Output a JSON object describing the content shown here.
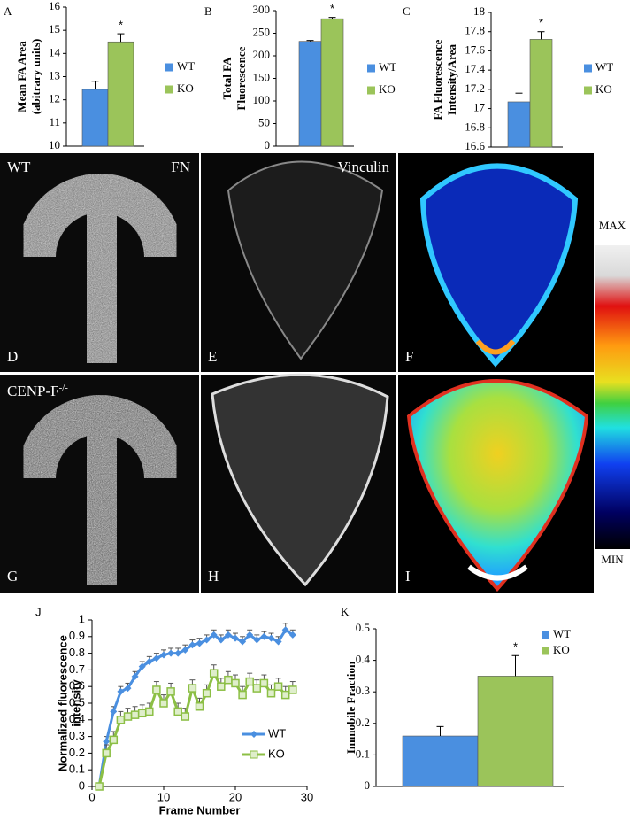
{
  "chart_data": [
    {
      "type": "bar",
      "panel": "A",
      "ylabel": [
        "Mean FA Area",
        "(abitrary units)"
      ],
      "ylim": [
        10,
        16
      ],
      "yticks": [
        10,
        11,
        12,
        13,
        14,
        15,
        16
      ],
      "series": [
        {
          "name": "WT",
          "color": "#4a8fe0",
          "values": [
            12.45
          ],
          "errors": [
            0.35
          ]
        },
        {
          "name": "KO",
          "color": "#9bc45a",
          "values": [
            14.5
          ],
          "errors": [
            0.35
          ]
        }
      ],
      "annotation": "*"
    },
    {
      "type": "bar",
      "panel": "B",
      "ylabel": [
        "Total FA",
        "Fluorescence"
      ],
      "ylim": [
        0,
        300
      ],
      "yticks": [
        0,
        50,
        100,
        150,
        200,
        250,
        300
      ],
      "series": [
        {
          "name": "WT",
          "color": "#4a8fe0",
          "values": [
            232
          ],
          "errors": [
            2
          ]
        },
        {
          "name": "KO",
          "color": "#9bc45a",
          "values": [
            282
          ],
          "errors": [
            3
          ]
        }
      ],
      "annotation": "*"
    },
    {
      "type": "bar",
      "panel": "C",
      "ylabel": [
        "FA Fluorescence",
        "Intensity/Area"
      ],
      "ylim": [
        16.6,
        18
      ],
      "yticks": [
        16.6,
        16.8,
        17,
        17.2,
        17.4,
        17.6,
        17.8,
        18
      ],
      "series": [
        {
          "name": "WT",
          "color": "#4a8fe0",
          "values": [
            17.07
          ],
          "errors": [
            0.09
          ]
        },
        {
          "name": "KO",
          "color": "#9bc45a",
          "values": [
            17.72
          ],
          "errors": [
            0.08
          ]
        }
      ],
      "annotation": "*"
    },
    {
      "type": "line",
      "panel": "J",
      "xlabel": "Frame Number",
      "ylabel": [
        "Normalized fluorescence",
        "intensity"
      ],
      "x": [
        1,
        2,
        3,
        4,
        5,
        6,
        7,
        8,
        9,
        10,
        11,
        12,
        13,
        14,
        15,
        16,
        17,
        18,
        19,
        20,
        21,
        22,
        23,
        24,
        25,
        26,
        27,
        28
      ],
      "xlim": [
        0,
        30
      ],
      "xticks": [
        0,
        10,
        20,
        30
      ],
      "ylim": [
        0,
        1
      ],
      "yticks": [
        0,
        0.1,
        0.2,
        0.3,
        0.4,
        0.5,
        0.6,
        0.7,
        0.8,
        0.9,
        1
      ],
      "series": [
        {
          "name": "WT",
          "color": "#4a8fe0",
          "values": [
            0,
            0.27,
            0.45,
            0.57,
            0.59,
            0.66,
            0.72,
            0.75,
            0.77,
            0.79,
            0.8,
            0.8,
            0.82,
            0.85,
            0.86,
            0.88,
            0.91,
            0.88,
            0.91,
            0.89,
            0.87,
            0.91,
            0.88,
            0.9,
            0.89,
            0.87,
            0.94,
            0.91
          ],
          "errors": [
            0.01,
            0.03,
            0.03,
            0.03,
            0.03,
            0.03,
            0.03,
            0.03,
            0.03,
            0.03,
            0.03,
            0.03,
            0.03,
            0.03,
            0.03,
            0.03,
            0.03,
            0.03,
            0.03,
            0.03,
            0.03,
            0.03,
            0.03,
            0.03,
            0.03,
            0.03,
            0.04,
            0.03
          ]
        },
        {
          "name": "KO",
          "color": "#8cbf45",
          "values": [
            0,
            0.2,
            0.28,
            0.4,
            0.42,
            0.43,
            0.44,
            0.45,
            0.58,
            0.5,
            0.57,
            0.45,
            0.42,
            0.59,
            0.48,
            0.56,
            0.68,
            0.6,
            0.64,
            0.62,
            0.55,
            0.63,
            0.59,
            0.62,
            0.56,
            0.6,
            0.55,
            0.58
          ],
          "errors": [
            0.01,
            0.05,
            0.05,
            0.05,
            0.05,
            0.05,
            0.05,
            0.05,
            0.05,
            0.05,
            0.05,
            0.05,
            0.05,
            0.05,
            0.05,
            0.05,
            0.05,
            0.05,
            0.05,
            0.05,
            0.05,
            0.05,
            0.05,
            0.05,
            0.05,
            0.05,
            0.05,
            0.05
          ]
        }
      ]
    },
    {
      "type": "bar",
      "panel": "K",
      "ylabel": [
        "Immobile Fraction"
      ],
      "ylim": [
        0,
        0.5
      ],
      "yticks": [
        0,
        0.1,
        0.2,
        0.3,
        0.4,
        0.5
      ],
      "series": [
        {
          "name": "WT",
          "color": "#4a8fe0",
          "values": [
            0.16
          ],
          "errors": [
            0.03
          ]
        },
        {
          "name": "KO",
          "color": "#9bc45a",
          "values": [
            0.35
          ],
          "errors": [
            0.065
          ]
        }
      ],
      "annotation": "*"
    }
  ],
  "images": {
    "panel_labels": [
      "D",
      "E",
      "F",
      "G",
      "H",
      "I"
    ],
    "wt": "WT",
    "fn": "FN",
    "vinculin": "Vinculin",
    "ko": {
      "text": "CENP-F",
      "sup": "-/-"
    },
    "scale": {
      "max": "MAX",
      "min": "MIN"
    }
  }
}
